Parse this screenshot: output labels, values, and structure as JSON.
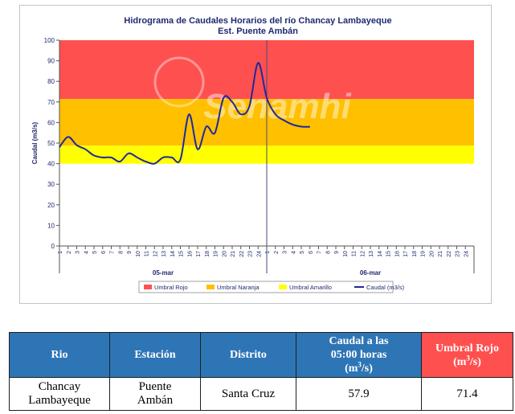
{
  "chart_data": {
    "type": "line",
    "title": "Hidrograma de Caudales Horarios del río Chancay Lambayeque",
    "subtitle": "Est. Puente Ambán",
    "ylabel": "Caudal (m3/s)",
    "ylim": [
      0,
      100
    ],
    "yticks": [
      0,
      10,
      20,
      30,
      40,
      50,
      60,
      70,
      80,
      90,
      100
    ],
    "xticks": [
      "1",
      "2",
      "3",
      "4",
      "5",
      "6",
      "7",
      "8",
      "9",
      "10",
      "11",
      "12",
      "13",
      "14",
      "15",
      "16",
      "17",
      "18",
      "19",
      "20",
      "21",
      "22",
      "23",
      "24",
      "1",
      "2",
      "3",
      "4",
      "5",
      "6",
      "7",
      "8",
      "9",
      "10",
      "11",
      "12",
      "13",
      "14",
      "15",
      "16",
      "17",
      "18",
      "19",
      "20",
      "21",
      "22",
      "23",
      "24"
    ],
    "day_labels": [
      "05-mar",
      "06-mar"
    ],
    "watermark": "Senamhi",
    "thresholds": [
      {
        "name": "Umbral Rojo",
        "from": 71.4,
        "to": 100,
        "color": "#ff5050"
      },
      {
        "name": "Umbral Naranja",
        "from": 48.8,
        "to": 71.4,
        "color": "#ffc000"
      },
      {
        "name": "Umbral Amarillo",
        "from": 40,
        "to": 48.8,
        "color": "#ffff00"
      }
    ],
    "series": [
      {
        "name": "Caudal (m3/s)",
        "color": "#1f2a9c",
        "x": [
          0,
          1,
          2,
          3,
          4,
          5,
          6,
          7,
          8,
          9,
          10,
          11,
          12,
          13,
          14,
          15,
          16,
          17,
          18,
          19,
          20,
          21,
          22,
          23,
          24,
          25,
          26,
          27,
          28,
          29
        ],
        "y": [
          48,
          53,
          49,
          47,
          44,
          43,
          43,
          41,
          45,
          43,
          41,
          40,
          43,
          43,
          42,
          64,
          47,
          58,
          55,
          72,
          70,
          64,
          68,
          89,
          72,
          64,
          61,
          59,
          58,
          57.9
        ]
      }
    ],
    "legend_position": "bottom",
    "grid": false
  },
  "legend": [
    {
      "label": "Umbral Rojo",
      "color": "#ff5050",
      "kind": "box"
    },
    {
      "label": "Umbral Naranja",
      "color": "#ffc000",
      "kind": "box"
    },
    {
      "label": "Umbral Amarillo",
      "color": "#ffff00",
      "kind": "box"
    },
    {
      "label": "Caudal (m3/s)",
      "color": "#1f2a9c",
      "kind": "line"
    }
  ],
  "table": {
    "headers": {
      "rio": "Rio",
      "estacion": "Estación",
      "distrito": "Distrito",
      "caudal_a": "Caudal a las",
      "caudal_b": "05:00 horas",
      "caudal_c_base": "(m",
      "caudal_c_sup": "3",
      "caudal_c_end": "/s)",
      "umbral_a": "Umbral Rojo",
      "umbral_b_base": "(m",
      "umbral_b_sup": "3",
      "umbral_b_end": "/s)"
    },
    "row": {
      "rio_a": "Chancay",
      "rio_b": "Lambayeque",
      "estacion_a": "Puente",
      "estacion_b": "Ambán",
      "distrito": "Santa Cruz",
      "caudal": "57.9",
      "umbral": "71.4"
    }
  }
}
